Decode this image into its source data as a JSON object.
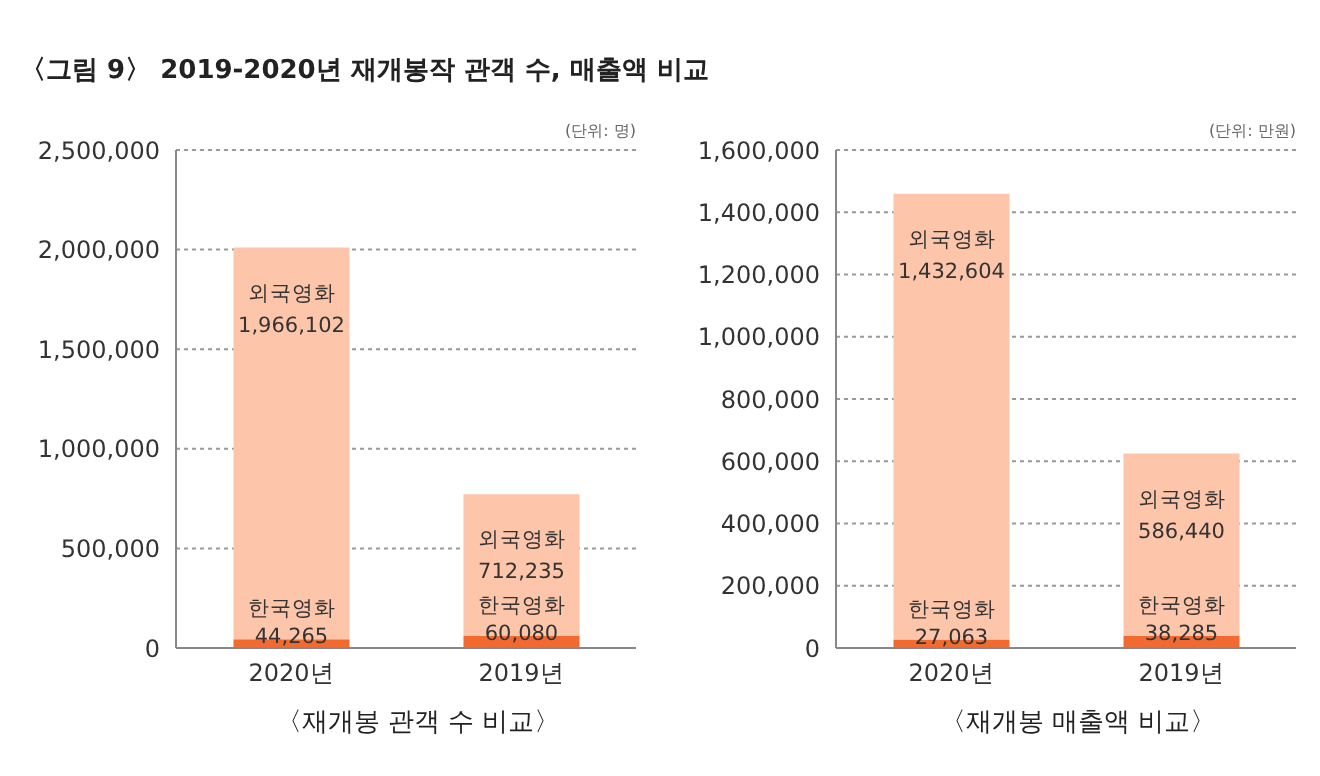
{
  "chart_data": [
    {
      "type": "bar",
      "title": "〈그림 9〉 2019-2020년 재개봉작 관객 수, 매출액 비교",
      "xlabel": "〈재개봉 관객 수 비교〉",
      "annotations": [
        "(단위: 명)"
      ],
      "categories": [
        "2020년",
        "2019년"
      ],
      "stacked": true,
      "grid": "y",
      "ylim": [
        0,
        2500000
      ],
      "yticks": [
        0,
        {
          "value": 500000,
          "label": "500,000"
        },
        {
          "value": 1000000,
          "label": "1,000,000"
        },
        {
          "value": 1500000,
          "label": "1,500,000"
        },
        {
          "value": 2000000,
          "label": "2,000,000"
        },
        {
          "value": 2500000,
          "label": "2,500,000"
        }
      ],
      "series": [
        {
          "name": "한국영화",
          "color": "#f26a30",
          "values": [
            44265,
            60080
          ],
          "value_labels": [
            "44,265",
            "60,080"
          ]
        },
        {
          "name": "외국영화",
          "color": "#fdc5a9",
          "values": [
            1966102,
            712235
          ],
          "value_labels": [
            "1,966,102",
            "712,235"
          ]
        }
      ]
    },
    {
      "type": "bar",
      "xlabel": "〈재개봉 매출액 비교〉",
      "annotations": [
        "(단위: 만원)"
      ],
      "categories": [
        "2020년",
        "2019년"
      ],
      "stacked": true,
      "grid": "y",
      "ylim": [
        0,
        1600000
      ],
      "yticks": [
        0,
        {
          "value": 200000,
          "label": "200,000"
        },
        {
          "value": 400000,
          "label": "400,000"
        },
        {
          "value": 600000,
          "label": "600,000"
        },
        {
          "value": 800000,
          "label": "800,000"
        },
        {
          "value": 1000000,
          "label": "1,000,000"
        },
        {
          "value": 1200000,
          "label": "1,200,000"
        },
        {
          "value": 1400000,
          "label": "1,400,000"
        },
        {
          "value": 1600000,
          "label": "1,600,000"
        }
      ],
      "series": [
        {
          "name": "한국영화",
          "color": "#f26a30",
          "values": [
            27063,
            38285
          ],
          "value_labels": [
            "27,063",
            "38,285"
          ]
        },
        {
          "name": "외국영화",
          "color": "#fdc5a9",
          "values": [
            1432604,
            586440
          ],
          "value_labels": [
            "1,432,604",
            "586,440"
          ]
        }
      ]
    }
  ]
}
